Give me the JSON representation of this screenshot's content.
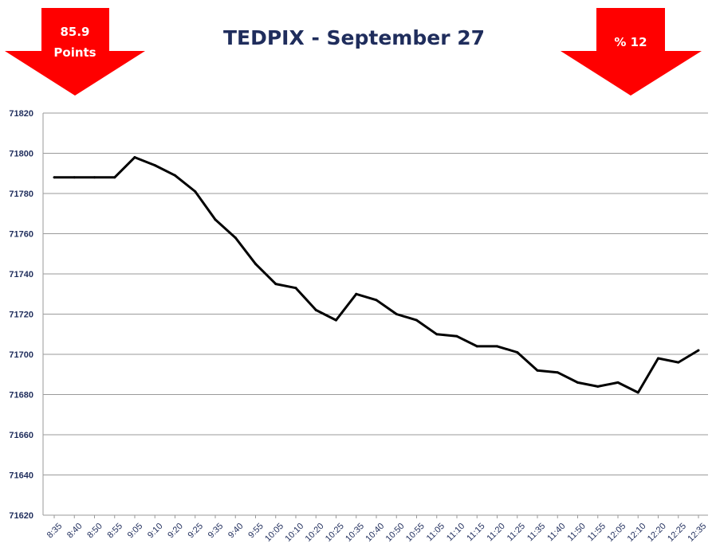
{
  "badges": {
    "left": {
      "line1": "85.9",
      "line2": "Points"
    },
    "right": {
      "label": "% 12"
    },
    "color": "#ff0000"
  },
  "chart_data": {
    "type": "line",
    "title": "TEDPIX - September 27",
    "xlabel": "",
    "ylabel": "",
    "ylim": [
      71620,
      71820
    ],
    "yticks": [
      71620,
      71640,
      71660,
      71680,
      71700,
      71720,
      71740,
      71760,
      71780,
      71800,
      71820
    ],
    "grid": true,
    "line_color": "#000000",
    "x": [
      "8:35",
      "8:40",
      "8:50",
      "8:55",
      "9:05",
      "9:10",
      "9:20",
      "9:25",
      "9:35",
      "9:40",
      "9:55",
      "10:05",
      "10:10",
      "10:20",
      "10:25",
      "10:35",
      "10:40",
      "10:50",
      "10:55",
      "11:05",
      "11:10",
      "11:15",
      "11:20",
      "11:25",
      "11:35",
      "11:40",
      "11:50",
      "11:55",
      "12:05",
      "12:10",
      "12:20",
      "12:25",
      "12:35"
    ],
    "values": [
      71788,
      71788,
      71788,
      71788,
      71798,
      71794,
      71789,
      71781,
      71767,
      71758,
      71745,
      71735,
      71733,
      71722,
      71717,
      71730,
      71727,
      71720,
      71717,
      71710,
      71709,
      71704,
      71704,
      71701,
      71692,
      71691,
      71686,
      71684,
      71686,
      71681,
      71698,
      71696,
      71702
    ]
  }
}
